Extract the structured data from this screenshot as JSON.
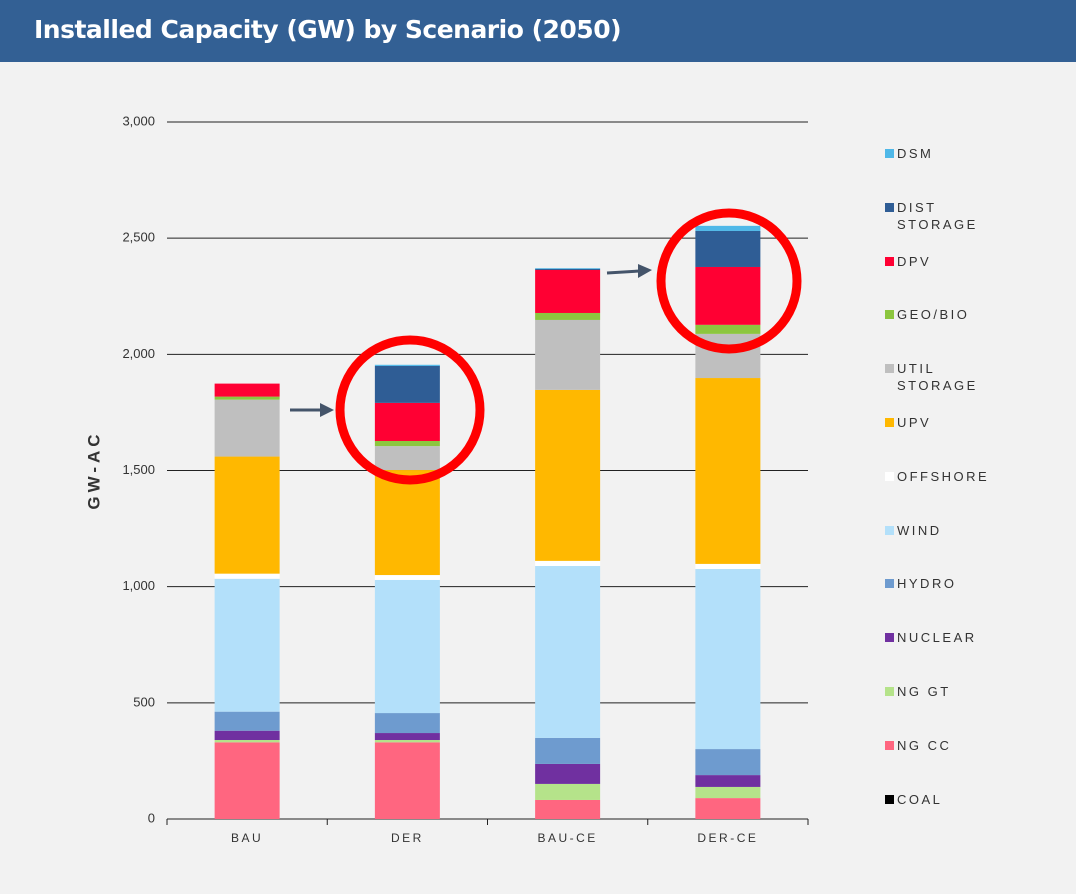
{
  "chart_data": {
    "type": "stacked_bar",
    "title": "Installed Capacity (GW) by Scenario (2050)",
    "y_label": "GW-AC",
    "categories": [
      "BAU",
      "DER",
      "BAU-CE",
      "DER-CE"
    ],
    "ylim": [
      0,
      3000
    ],
    "yticks": [
      0,
      500,
      {
        "value": 1000,
        "label": "1,000"
      },
      {
        "value": 1500,
        "label": "1,500"
      },
      {
        "value": 2000,
        "label": "2,000"
      },
      {
        "value": 2500,
        "label": "2,500"
      },
      {
        "value": 3000,
        "label": "3,000"
      }
    ],
    "grid": true,
    "legend": "right",
    "series": [
      {
        "name": "COAL",
        "color": "#000000",
        "values": [
          0,
          0,
          0,
          0
        ]
      },
      {
        "name": "NG CC",
        "color": "#ff6680",
        "values": [
          330,
          330,
          82,
          90
        ]
      },
      {
        "name": "NG GT",
        "color": "#b5e38a",
        "values": [
          10,
          10,
          69,
          48
        ]
      },
      {
        "name": "NUCLEAR",
        "color": "#7030a0",
        "values": [
          40,
          30,
          86,
          51
        ]
      },
      {
        "name": "HYDRO",
        "color": "#6e9bcf",
        "values": [
          82,
          86,
          112,
          112
        ]
      },
      {
        "name": "WIND",
        "color": "#b3e0fa",
        "values": [
          572,
          573,
          740,
          775
        ]
      },
      {
        "name": "OFFSHORE",
        "color": "#ffffff",
        "values": [
          22,
          21,
          22,
          22
        ]
      },
      {
        "name": "UPV",
        "color": "#ffb800",
        "values": [
          504,
          452,
          736,
          800
        ]
      },
      {
        "name": "UTIL STORAGE",
        "color": "#bfbfbf",
        "values": [
          245,
          103,
          301,
          190
        ]
      },
      {
        "name": "GEO/BIO",
        "color": "#8cc63f",
        "values": [
          13,
          22,
          30,
          39
        ]
      },
      {
        "name": "DPV",
        "color": "#ff0033",
        "values": [
          56,
          164,
          185,
          249
        ]
      },
      {
        "name": "DIST STORAGE",
        "color": "#2f5d95",
        "values": [
          0,
          159,
          5,
          155
        ]
      },
      {
        "name": "DSM",
        "color": "#4fb8e8",
        "values": [
          0,
          5,
          3,
          22
        ]
      }
    ]
  }
}
